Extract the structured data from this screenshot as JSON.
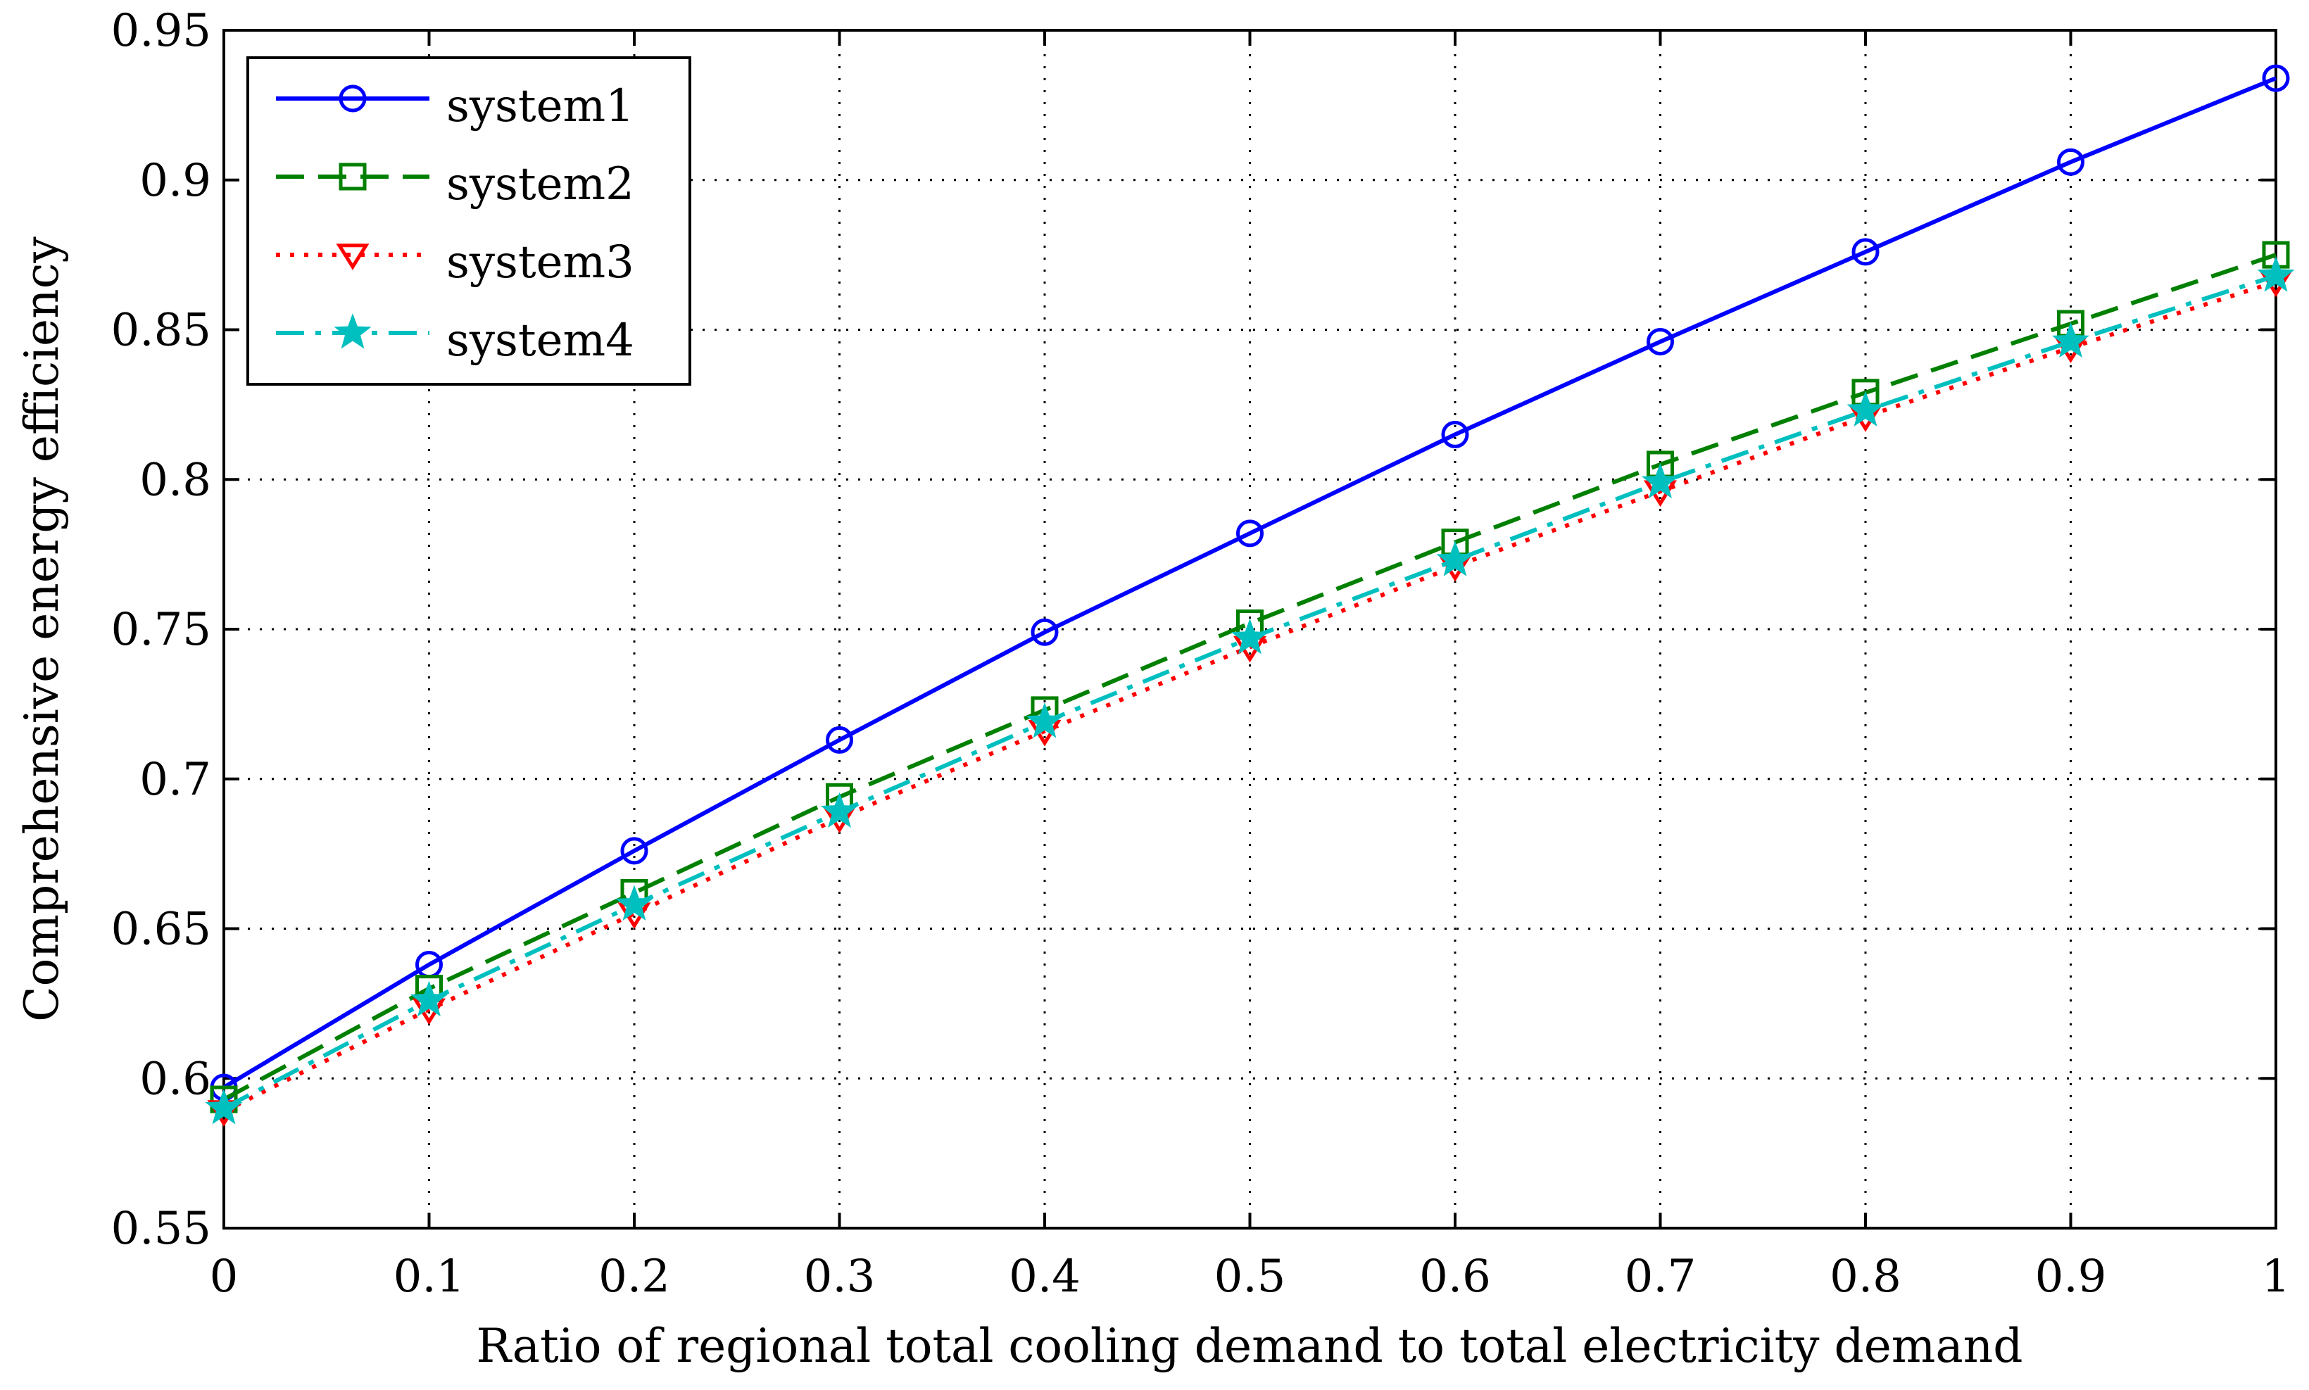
{
  "chart_data": {
    "type": "line",
    "title": "",
    "xlabel": "Ratio of regional total cooling demand to total electricity demand",
    "ylabel": "Comprehensive energy efficiency",
    "xlim": [
      0,
      1
    ],
    "ylim": [
      0.55,
      0.95
    ],
    "grid": true,
    "legend_position": "top-left",
    "x": [
      0,
      0.1,
      0.2,
      0.3,
      0.4,
      0.5,
      0.6,
      0.7,
      0.8,
      0.9,
      1
    ],
    "xticks": [
      0,
      0.1,
      0.2,
      0.3,
      0.4,
      0.5,
      0.6,
      0.7,
      0.8,
      0.9,
      1
    ],
    "xtick_labels": [
      "0",
      "0.1",
      "0.2",
      "0.3",
      "0.4",
      "0.5",
      "0.6",
      "0.7",
      "0.8",
      "0.9",
      "1"
    ],
    "yticks": [
      0.55,
      0.6,
      0.65,
      0.7,
      0.75,
      0.8,
      0.85,
      0.9,
      0.95
    ],
    "ytick_labels": [
      "0.55",
      "0.6",
      "0.65",
      "0.7",
      "0.75",
      "0.8",
      "0.85",
      "0.9",
      "0.95"
    ],
    "series": [
      {
        "name": "system1",
        "color": "#0000ff",
        "line": "solid",
        "marker": "circle",
        "values": [
          0.597,
          0.638,
          0.676,
          0.713,
          0.749,
          0.782,
          0.815,
          0.846,
          0.876,
          0.906,
          0.934
        ]
      },
      {
        "name": "system2",
        "color": "#008000",
        "line": "dashed",
        "marker": "square",
        "values": [
          0.593,
          0.63,
          0.662,
          0.694,
          0.723,
          0.752,
          0.779,
          0.805,
          0.829,
          0.852,
          0.875
        ]
      },
      {
        "name": "system3",
        "color": "#ff0000",
        "line": "dotted",
        "marker": "triangle-down",
        "values": [
          0.589,
          0.623,
          0.655,
          0.687,
          0.716,
          0.744,
          0.771,
          0.796,
          0.821,
          0.844,
          0.866
        ]
      },
      {
        "name": "system4",
        "color": "#00bfbf",
        "line": "dashdot",
        "marker": "star",
        "values": [
          0.59,
          0.626,
          0.658,
          0.689,
          0.719,
          0.747,
          0.773,
          0.799,
          0.823,
          0.846,
          0.868
        ]
      }
    ]
  }
}
